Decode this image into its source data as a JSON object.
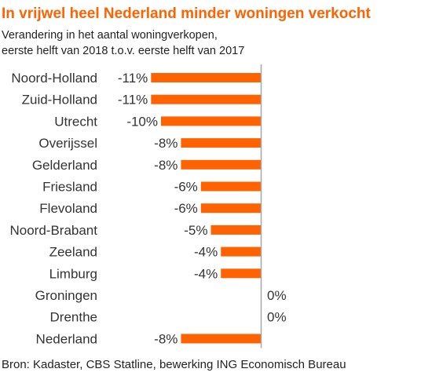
{
  "header": {
    "title": "In vrijwel heel Nederland minder woningen verkocht",
    "subtitle_line1": "Verandering in het aantal woningverkopen,",
    "subtitle_line2": "eerste helft van 2018 t.o.v. eerste helft van 2017"
  },
  "footer": {
    "source": "Bron: Kadaster, CBS Statline, bewerking ING Economisch Bureau"
  },
  "colors": {
    "bar": "#ff6200",
    "title": "#ff6200",
    "axis": "#a6a6a6"
  },
  "chart_data": {
    "type": "bar",
    "orientation": "horizontal",
    "title": "In vrijwel heel Nederland minder woningen verkocht",
    "categories": [
      "Noord-Holland",
      "Zuid-Holland",
      "Utrecht",
      "Overijssel",
      "Gelderland",
      "Friesland",
      "Flevoland",
      "Noord-Brabant",
      "Zeeland",
      "Limburg",
      "Groningen",
      "Drenthe",
      "Nederland"
    ],
    "values": [
      -11,
      -11,
      -10,
      -8,
      -8,
      -6,
      -6,
      -5,
      -4,
      -4,
      0,
      0,
      -8
    ],
    "data_labels": [
      "-11%",
      "-11%",
      "-10%",
      "-8%",
      "-8%",
      "-6%",
      "-6%",
      "-5%",
      "-4%",
      "-4%",
      "0%",
      "0%",
      "-8%"
    ],
    "unit": "%",
    "grid": false,
    "legend": "none"
  }
}
